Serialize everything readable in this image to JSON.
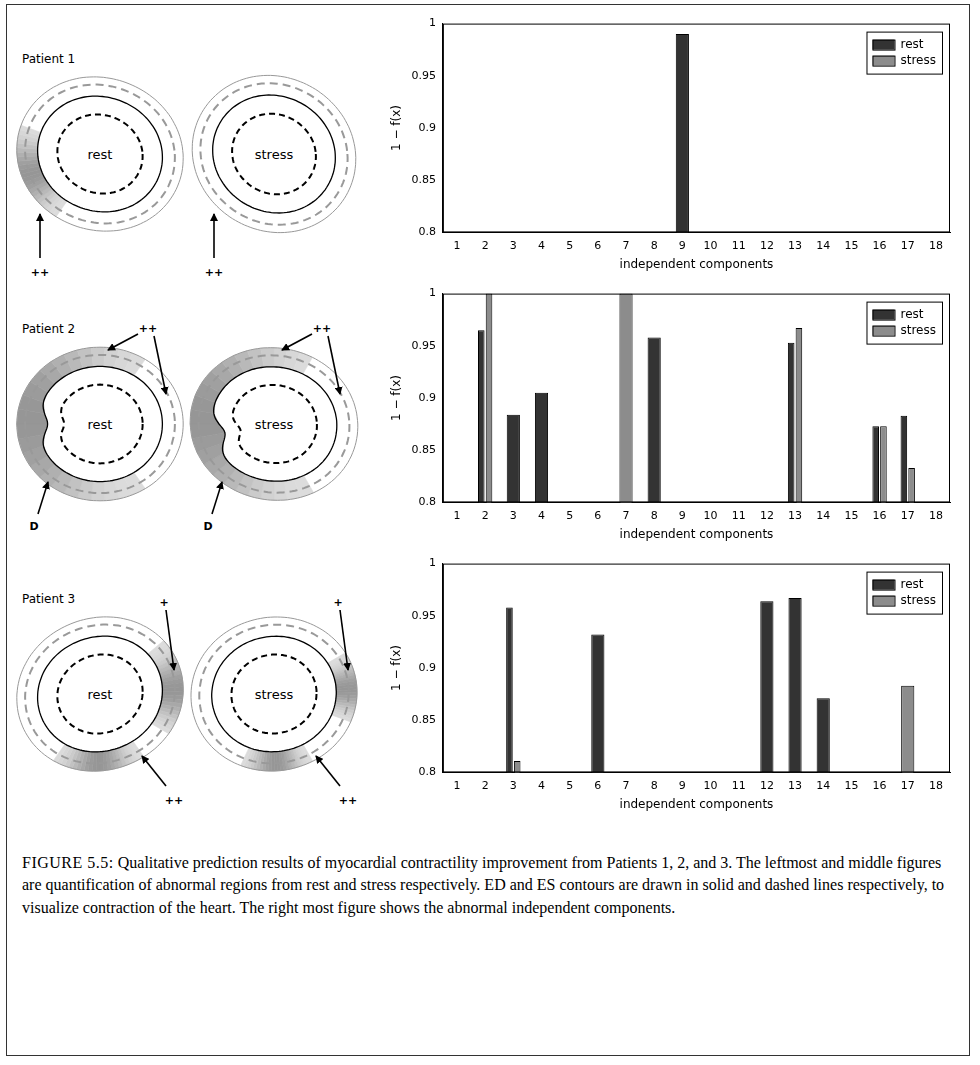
{
  "patients": [
    {
      "title": "Patient 1",
      "diagrams": [
        {
          "label": "rest",
          "annotations": [
            "++"
          ]
        },
        {
          "label": "stress",
          "annotations": [
            "++"
          ]
        }
      ]
    },
    {
      "title": "Patient 2",
      "diagrams": [
        {
          "label": "rest",
          "annotations": [
            "++",
            "D"
          ]
        },
        {
          "label": "stress",
          "annotations": [
            "++",
            "D"
          ]
        }
      ]
    },
    {
      "title": "Patient 3",
      "diagrams": [
        {
          "label": "rest",
          "annotations": [
            "+",
            "++"
          ]
        },
        {
          "label": "stress",
          "annotations": [
            "+",
            "++"
          ]
        }
      ]
    }
  ],
  "chart_data": [
    {
      "type": "bar",
      "xlabel": "independent components",
      "ylabel": "1 − f(x)",
      "categories": [
        "1",
        "2",
        "3",
        "4",
        "5",
        "6",
        "7",
        "8",
        "9",
        "10",
        "11",
        "12",
        "13",
        "14",
        "15",
        "16",
        "17",
        "18"
      ],
      "ylim": [
        0.8,
        1
      ],
      "yticks": [
        0.8,
        0.85,
        0.9,
        0.95,
        1
      ],
      "grid": false,
      "legend": "top-right",
      "series": [
        {
          "name": "rest",
          "color": "#333333",
          "values": [
            null,
            null,
            null,
            null,
            null,
            null,
            null,
            null,
            0.99,
            null,
            null,
            null,
            null,
            null,
            null,
            null,
            null,
            null
          ]
        },
        {
          "name": "stress",
          "color": "#8c8c8c",
          "values": [
            null,
            null,
            null,
            null,
            null,
            null,
            null,
            null,
            null,
            null,
            null,
            null,
            null,
            null,
            null,
            null,
            null,
            null
          ]
        }
      ]
    },
    {
      "type": "bar",
      "xlabel": "independent components",
      "ylabel": "1 − f(x)",
      "categories": [
        "1",
        "2",
        "3",
        "4",
        "5",
        "6",
        "7",
        "8",
        "9",
        "10",
        "11",
        "12",
        "13",
        "14",
        "15",
        "16",
        "17",
        "18"
      ],
      "ylim": [
        0.8,
        1
      ],
      "yticks": [
        0.8,
        0.85,
        0.9,
        0.95,
        1
      ],
      "grid": false,
      "legend": "top-right",
      "series": [
        {
          "name": "rest",
          "color": "#333333",
          "values": [
            null,
            0.965,
            0.884,
            0.905,
            null,
            null,
            null,
            0.958,
            null,
            null,
            null,
            null,
            0.953,
            null,
            null,
            0.873,
            0.883,
            null
          ]
        },
        {
          "name": "stress",
          "color": "#8c8c8c",
          "values": [
            null,
            1,
            null,
            null,
            null,
            null,
            1,
            null,
            null,
            null,
            null,
            null,
            0.967,
            null,
            null,
            0.873,
            0.833,
            null
          ]
        }
      ]
    },
    {
      "type": "bar",
      "xlabel": "independent components",
      "ylabel": "1 − f(x)",
      "categories": [
        "1",
        "2",
        "3",
        "4",
        "5",
        "6",
        "7",
        "8",
        "9",
        "10",
        "11",
        "12",
        "13",
        "14",
        "15",
        "16",
        "17",
        "18"
      ],
      "ylim": [
        0.8,
        1
      ],
      "yticks": [
        0.8,
        0.85,
        0.9,
        0.95,
        1
      ],
      "grid": false,
      "legend": "top-right",
      "series": [
        {
          "name": "rest",
          "color": "#333333",
          "values": [
            null,
            null,
            0.958,
            null,
            null,
            0.932,
            null,
            null,
            null,
            null,
            null,
            0.964,
            0.967,
            0.871,
            null,
            null,
            null,
            null
          ]
        },
        {
          "name": "stress",
          "color": "#8c8c8c",
          "values": [
            null,
            null,
            0.811,
            null,
            null,
            null,
            null,
            null,
            null,
            null,
            null,
            null,
            null,
            null,
            null,
            null,
            0.883,
            null
          ]
        }
      ]
    }
  ],
  "caption": {
    "label": "FIGURE 5.5:",
    "text": "Qualitative prediction results of myocardial contractility improvement from Patients 1, 2, and 3. The leftmost and middle figures are quantification of abnormal regions from rest and stress respectively. ED and ES contours are drawn in solid and dashed lines respectively, to visualize contraction of the heart. The right most figure shows the abnormal independent components."
  }
}
